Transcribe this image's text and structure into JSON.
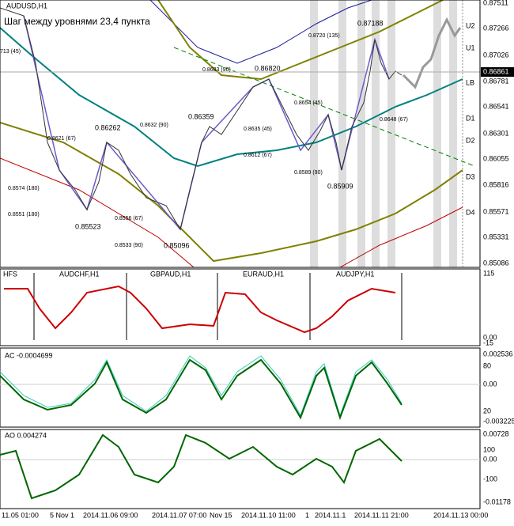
{
  "main": {
    "symbol": "AUDUSD,H1",
    "note": "Шаг между уровнями 23,4 пункта",
    "price_axis": [
      "0.87511",
      "0.87266",
      "0.87026",
      "0.86781",
      "0.86541",
      "0.86301",
      "0.86055",
      "0.85816",
      "0.85571",
      "0.85331",
      "0.85086"
    ],
    "current_price": "0.86861",
    "levels": [
      "U2",
      "U1",
      "LB",
      "D1",
      "D2",
      "D3",
      "D4"
    ],
    "annotations": [
      "713 (45)",
      "0.8621 (67)",
      "0.86262",
      "0.8574 (180)",
      "0.8551 (180)",
      "0.85523",
      "0.8556 (67)",
      "0.8533 (90)",
      "0.85096",
      "0.8632 (90)",
      "0.86359",
      "0.8683 (90)",
      "0.86820",
      "0.8635 (45)",
      "0.8612 (67)",
      "0.8654 (45)",
      "0.8589 (90)",
      "0.85909",
      "0.8720 (135)",
      "0.87188",
      "0.8648 (67)"
    ]
  },
  "hfs": {
    "title": "HFS",
    "symbols": [
      "AUDCHF,H1",
      "GBPAUD,H1",
      "EURAUD,H1",
      "AUDJPY,H1"
    ],
    "axis": [
      "115",
      "0.00",
      "-15"
    ]
  },
  "ac": {
    "title": "AC -0.0004699",
    "axis": [
      "0.002536",
      "80",
      "0.00",
      "20",
      "-0.003225"
    ]
  },
  "ao": {
    "title": "AO 0.004274",
    "axis": [
      "0.00728",
      "100",
      "0.00",
      "-100",
      "-0.01178"
    ]
  },
  "time_axis": [
    "11.05 01:00",
    "5 Nov 1",
    "2014.11.06 09:00",
    "2014.11.07 07:00",
    "Nov 15",
    "2014.11.10 11:00",
    "1",
    "2014.11.1",
    "2014.11.11 21:00",
    "2014.11.13 00:00"
  ]
}
